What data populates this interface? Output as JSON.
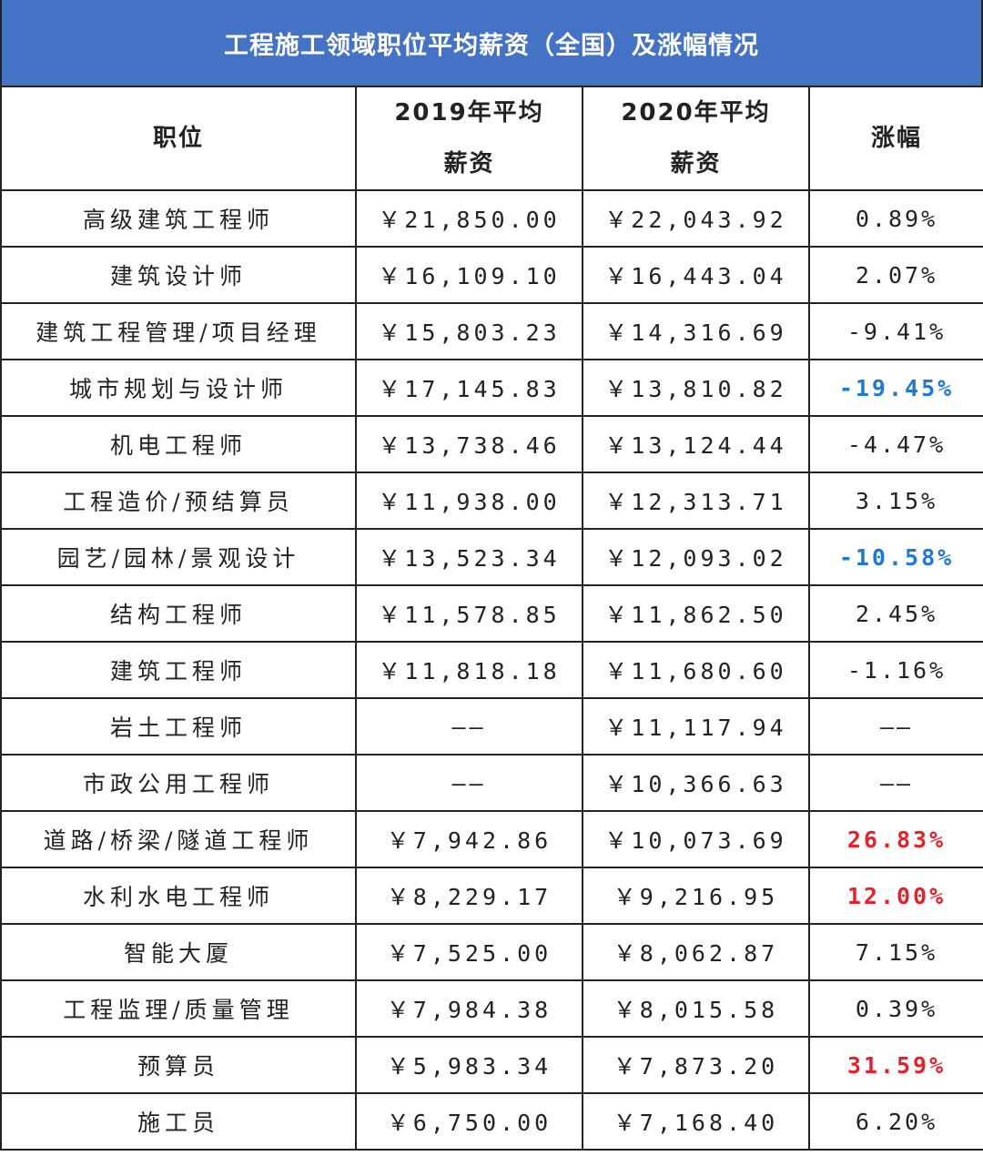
{
  "title": "工程施工领域职位平均薪资（全国）及涨幅情况",
  "colors": {
    "header_bg": "#4472c4",
    "highlight_negative": "#1f78d1",
    "highlight_positive": "#e8202a"
  },
  "chart_data": {
    "type": "table",
    "title": "工程施工领域职位平均薪资（全国）及涨幅情况",
    "columns": [
      "职位",
      "2019年平均\n薪资",
      "2020年平均\n薪资",
      "涨幅"
    ],
    "header": {
      "col1": "职位",
      "col2_line1": "2019年平均",
      "col2_line2": "薪资",
      "col3_line1": "2020年平均",
      "col3_line2": "薪资",
      "col4": "涨幅"
    },
    "rows": [
      {
        "position": "高级建筑工程师",
        "salary_2019": "￥21,850.00",
        "salary_2020": "￥22,043.92",
        "change": "0.89%",
        "highlight": ""
      },
      {
        "position": "建筑设计师",
        "salary_2019": "￥16,109.10",
        "salary_2020": "￥16,443.04",
        "change": "2.07%",
        "highlight": ""
      },
      {
        "position": "建筑工程管理/项目经理",
        "salary_2019": "￥15,803.23",
        "salary_2020": "￥14,316.69",
        "change": "-9.41%",
        "highlight": ""
      },
      {
        "position": "城市规划与设计师",
        "salary_2019": "￥17,145.83",
        "salary_2020": "￥13,810.82",
        "change": "-19.45%",
        "highlight": "negative"
      },
      {
        "position": "机电工程师",
        "salary_2019": "￥13,738.46",
        "salary_2020": "￥13,124.44",
        "change": "-4.47%",
        "highlight": ""
      },
      {
        "position": "工程造价/预结算员",
        "salary_2019": "￥11,938.00",
        "salary_2020": "￥12,313.71",
        "change": "3.15%",
        "highlight": ""
      },
      {
        "position": "园艺/园林/景观设计",
        "salary_2019": "￥13,523.34",
        "salary_2020": "￥12,093.02",
        "change": "-10.58%",
        "highlight": "negative"
      },
      {
        "position": "结构工程师",
        "salary_2019": "￥11,578.85",
        "salary_2020": "￥11,862.50",
        "change": "2.45%",
        "highlight": ""
      },
      {
        "position": "建筑工程师",
        "salary_2019": "￥11,818.18",
        "salary_2020": "￥11,680.60",
        "change": "-1.16%",
        "highlight": ""
      },
      {
        "position": "岩土工程师",
        "salary_2019": "——",
        "salary_2020": "￥11,117.94",
        "change": "——",
        "highlight": ""
      },
      {
        "position": "市政公用工程师",
        "salary_2019": "——",
        "salary_2020": "￥10,366.63",
        "change": "——",
        "highlight": ""
      },
      {
        "position": "道路/桥梁/隧道工程师",
        "salary_2019": "￥7,942.86",
        "salary_2020": "￥10,073.69",
        "change": "26.83%",
        "highlight": "positive"
      },
      {
        "position": "水利水电工程师",
        "salary_2019": "￥8,229.17",
        "salary_2020": "￥9,216.95",
        "change": "12.00%",
        "highlight": "positive"
      },
      {
        "position": "智能大厦",
        "salary_2019": "￥7,525.00",
        "salary_2020": "￥8,062.87",
        "change": "7.15%",
        "highlight": ""
      },
      {
        "position": "工程监理/质量管理",
        "salary_2019": "￥7,984.38",
        "salary_2020": "￥8,015.58",
        "change": "0.39%",
        "highlight": ""
      },
      {
        "position": "预算员",
        "salary_2019": "￥5,983.34",
        "salary_2020": "￥7,873.20",
        "change": "31.59%",
        "highlight": "positive"
      },
      {
        "position": "施工员",
        "salary_2019": "￥6,750.00",
        "salary_2020": "￥7,168.40",
        "change": "6.20%",
        "highlight": ""
      }
    ]
  }
}
